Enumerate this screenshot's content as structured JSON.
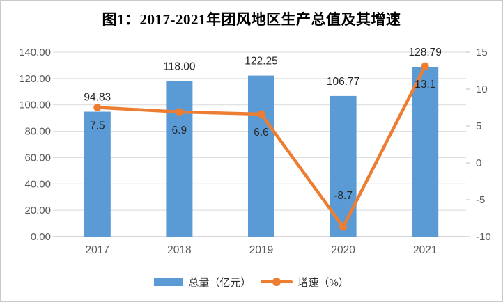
{
  "title": "图1：2017-2021年团风地区生产总值及其增速",
  "chart_data": {
    "type": "bar+line",
    "title": "图1：2017-2021年团风地区生产总值及其增速",
    "categories": [
      "2017",
      "2018",
      "2019",
      "2020",
      "2021"
    ],
    "series": [
      {
        "name": "总量（亿元）",
        "type": "bar",
        "axis": "left",
        "values": [
          94.83,
          118.0,
          122.25,
          106.77,
          128.79
        ],
        "labels": [
          "94.83",
          "118.00",
          "122.25",
          "106.77",
          "128.79"
        ],
        "color": "#5B9BD5"
      },
      {
        "name": "增速（%）",
        "type": "line",
        "axis": "right",
        "values": [
          7.5,
          6.9,
          6.6,
          -8.7,
          13.1
        ],
        "labels": [
          "7.5",
          "6.9",
          "6.6",
          "-8.7",
          "13.1"
        ],
        "color": "#ED7D31"
      }
    ],
    "left_axis": {
      "min": 0,
      "max": 140,
      "step": 20,
      "tick_labels": [
        "140.00",
        "120.00",
        "100.00",
        "80.00",
        "60.00",
        "40.00",
        "20.00",
        "0.00"
      ]
    },
    "right_axis": {
      "min": -10,
      "max": 15,
      "step": 5,
      "tick_labels": [
        "15",
        "10",
        "5",
        "0",
        "-5",
        "-10"
      ]
    },
    "grid": true,
    "legend_position": "bottom"
  },
  "legend": {
    "items": [
      {
        "label": "总量（亿元）",
        "color": "#5B9BD5",
        "marker": "bar"
      },
      {
        "label": "增速（%）",
        "color": "#ED7D31",
        "marker": "line-dot"
      }
    ]
  },
  "colors": {
    "bar": "#5B9BD5",
    "line": "#ED7D31",
    "gridline": "#D9D9D9",
    "axis_line": "#BFBFBF",
    "axis_text": "#595959",
    "data_label_text": "#262626",
    "frame_border": "#C9C9C9",
    "background": "#FFFFFF"
  }
}
